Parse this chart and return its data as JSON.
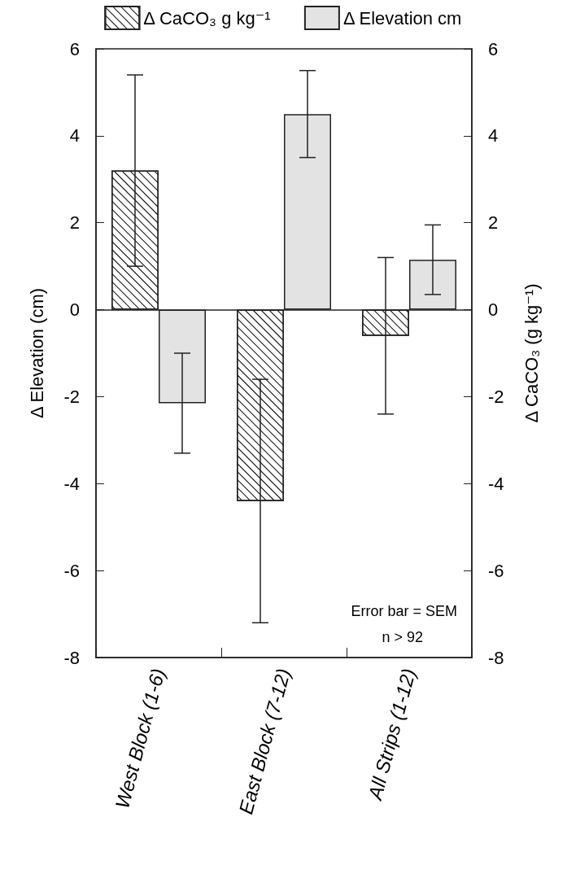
{
  "chart_data": {
    "type": "bar",
    "categories": [
      "West Block (1-6)",
      "East Block (7-12)",
      "All Strips (1-12)"
    ],
    "series": [
      {
        "name": "Δ CaCO₃ g kg⁻¹",
        "color": "#ffffff",
        "values": [
          3.2,
          -4.4,
          -0.6
        ],
        "errors": [
          2.2,
          2.8,
          1.8
        ]
      },
      {
        "name": "Δ Elevation cm",
        "color": "#e3e3e3",
        "values": [
          -2.15,
          4.5,
          1.15
        ],
        "errors": [
          1.15,
          1.0,
          0.8
        ]
      }
    ],
    "ylabel": "Δ Elevation (cm)",
    "y2label": "Δ CaCO₃ (g kg⁻¹)",
    "ylim": [
      -8,
      6
    ],
    "yticks": [
      -8,
      -6,
      -4,
      -2,
      0,
      2,
      4,
      6
    ],
    "y2lim": [
      -8,
      6
    ],
    "y2ticks": [
      -8,
      -6,
      -4,
      -2,
      0,
      2,
      4,
      6
    ],
    "ref_lines": [
      {
        "axis": "y",
        "value": 0
      }
    ],
    "annotations": [
      "Error bar = SEM",
      "n > 92"
    ],
    "legend": "top",
    "grid": false
  }
}
